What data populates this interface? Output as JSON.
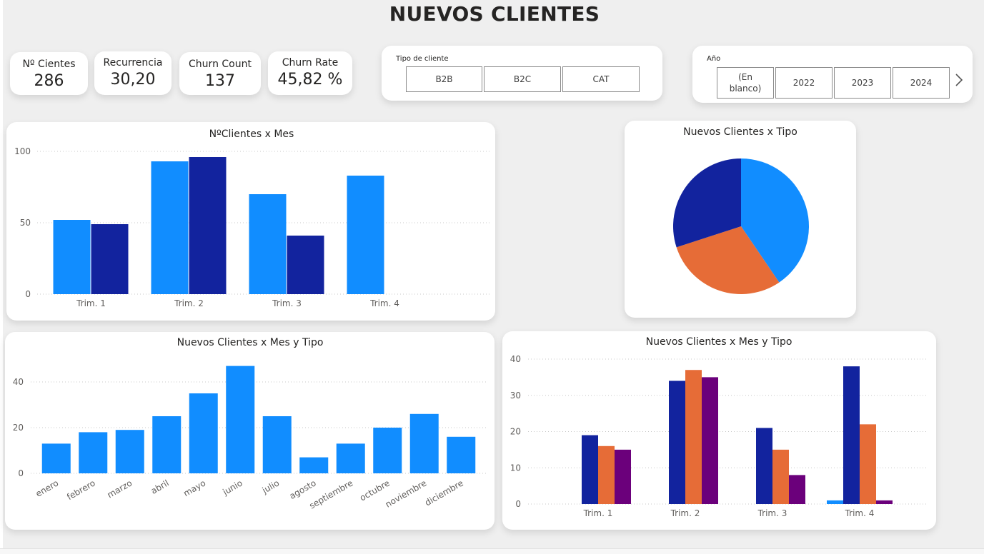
{
  "page": {
    "title": "NUEVOS CLIENTES"
  },
  "colors": {
    "b2b": "#118DFF",
    "b2c": "#12239E",
    "cat": "#E66C37",
    "other": "#6B007B"
  },
  "kpis": [
    {
      "label": "Nº Cientes",
      "value": "286"
    },
    {
      "label": "Recurrencia",
      "value": "30,20"
    },
    {
      "label": "Churn Count",
      "value": "137"
    },
    {
      "label": "Churn Rate",
      "value": "45,82 %"
    }
  ],
  "slicer_tipo": {
    "title": "Tipo de cliente",
    "options": [
      "B2B",
      "B2C",
      "CAT"
    ]
  },
  "slicer_anio": {
    "title": "Año",
    "options": [
      "(En blanco)",
      "2022",
      "2023",
      "2024"
    ],
    "next_icon": "chevron-right-icon"
  },
  "chart_data": [
    {
      "type": "bar",
      "title": "NºClientes x Mes",
      "categories": [
        "Trim. 1",
        "Trim. 2",
        "Trim. 3",
        "Trim. 4"
      ],
      "series": [
        {
          "values": [
            52,
            93,
            70,
            83
          ],
          "color": "#118DFF"
        },
        {
          "values": [
            49,
            96,
            41,
            null
          ],
          "color": "#12239E"
        }
      ],
      "ylim": [
        0,
        100
      ],
      "yticks": [
        0,
        50,
        100
      ],
      "grid": true
    },
    {
      "type": "pie",
      "title": "Nuevos Clientes x Tipo",
      "slices": [
        {
          "value": 40.5,
          "color": "#118DFF"
        },
        {
          "value": 29.5,
          "color": "#E66C37"
        },
        {
          "value": 30,
          "color": "#12239E"
        }
      ]
    },
    {
      "type": "bar",
      "title": "Nuevos Clientes x Mes y Tipo",
      "categories": [
        "enero",
        "febrero",
        "marzo",
        "abril",
        "mayo",
        "junio",
        "julio",
        "agosto",
        "septiembre",
        "octubre",
        "noviembre",
        "diciembre"
      ],
      "series": [
        {
          "values": [
            13,
            18,
            19,
            25,
            35,
            47,
            25,
            7,
            13,
            20,
            26,
            16
          ],
          "color": "#118DFF"
        }
      ],
      "ylim": [
        0,
        50
      ],
      "yticks": [
        0,
        20,
        40
      ],
      "grid": true
    },
    {
      "type": "bar",
      "title": "Nuevos Clientes x Mes y Tipo",
      "categories": [
        "Trim. 1",
        "Trim. 2",
        "Trim. 3",
        "Trim. 4"
      ],
      "series": [
        {
          "values": [
            0,
            0,
            0,
            1
          ],
          "color": "#118DFF"
        },
        {
          "values": [
            19,
            34,
            21,
            38
          ],
          "color": "#12239E"
        },
        {
          "values": [
            16,
            37,
            15,
            22
          ],
          "color": "#E66C37"
        },
        {
          "values": [
            15,
            35,
            8,
            1
          ],
          "color": "#6B007B"
        }
      ],
      "ylim": [
        0,
        40
      ],
      "yticks": [
        0,
        10,
        20,
        30,
        40
      ],
      "grid": true
    }
  ]
}
